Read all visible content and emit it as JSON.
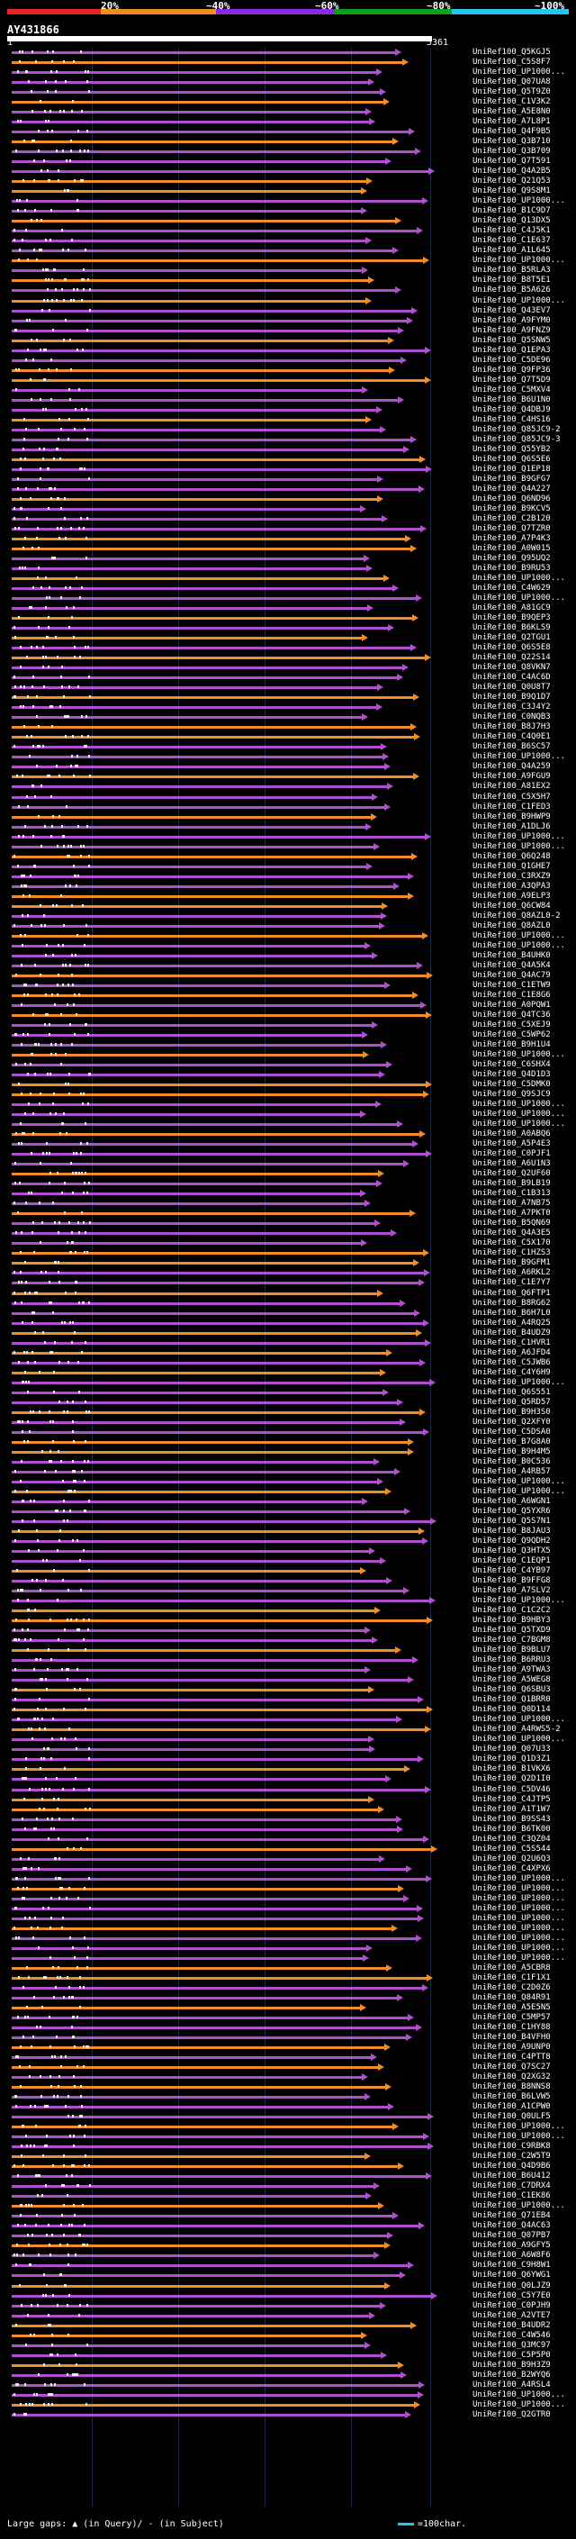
{
  "legend": {
    "labels": [
      "20%",
      "~40%",
      "~60%",
      "~80%",
      "~100%"
    ],
    "colors": [
      "#e62424",
      "#f28c28",
      "#8a2be2",
      "#0c9f1c",
      "#24c5f1"
    ]
  },
  "query": {
    "id": "AY431866",
    "start": "1",
    "end": "5361"
  },
  "footer": {
    "gaps": "Large gaps: ▲ (in Query)/ - (in Subject)",
    "scale": "=100char."
  },
  "hits": [
    "UniRef100_Q5KGJ5",
    "UniRef100_C5S8F7",
    "UniRef100_UP1000...",
    "UniRef100_Q07UA8",
    "UniRef100_Q5T9Z0",
    "UniRef100_C1V3K2",
    "UniRef100_A5E8N0",
    "UniRef100_A7L8P1",
    "UniRef100_Q4F9B5",
    "UniRef100_Q3B710",
    "UniRef100_Q3B709",
    "UniRef100_Q7T591",
    "UniRef100_Q4A2B5",
    "UniRef100_Q21Q53",
    "UniRef100_Q9S8M1",
    "UniRef100_UP1000...",
    "UniRef100_B1C9D7",
    "UniRef100_Q13DX5",
    "UniRef100_C4J5K1",
    "UniRef100_C1E637",
    "UniRef100_A1L645",
    "UniRef100_UP1000...",
    "UniRef100_B5RLA3",
    "UniRef100_B8T5E1",
    "UniRef100_B5A626",
    "UniRef100_UP1000...",
    "UniRef100_Q43EV7",
    "UniRef100_A9FYM0",
    "UniRef100_A9FNZ9",
    "UniRef100_Q5SNW5",
    "UniRef100_Q1EPA3",
    "UniRef100_C5DE96",
    "UniRef100_Q9FP36",
    "UniRef100_Q7T5D9",
    "UniRef100_C5MXV4",
    "UniRef100_B6U1N0",
    "UniRef100_Q4DBJ9",
    "UniRef100_C4HS16",
    "UniRef100_Q85JC9-2",
    "UniRef100_Q85JC9-3",
    "UniRef100_Q55YB2",
    "UniRef100_Q6S5E6",
    "UniRef100_Q1EP18",
    "UniRef100_B9GFG7",
    "UniRef100_Q4A227",
    "UniRef100_Q6ND96",
    "UniRef100_B9KCV5",
    "UniRef100_C2B120",
    "UniRef100_Q7TZR0",
    "UniRef100_A7P4K3",
    "UniRef100_A0W015",
    "UniRef100_Q95UQ2",
    "UniRef100_B9RU53",
    "UniRef100_UP1000...",
    "UniRef100_C4W629",
    "UniRef100_UP1000...",
    "UniRef100_A81GC9",
    "UniRef100_B9QEP3",
    "UniRef100_B6KLS9",
    "UniRef100_Q2TGU1",
    "UniRef100_Q6S5E8",
    "UniRef100_Q22S14",
    "UniRef100_Q8VKN7",
    "UniRef100_C4AC6D",
    "UniRef100_Q0U8T7",
    "UniRef100_B9Q1D7",
    "UniRef100_C3J4Y2",
    "UniRef100_C0NQB3",
    "UniRef100_B8J7H3",
    "UniRef100_C4Q0E1",
    "UniRef100_B6SC57",
    "UniRef100_UP1000...",
    "UniRef100_Q4A259",
    "UniRef100_A9FGU9",
    "UniRef100_A81EX2",
    "UniRef100_C5X5H7",
    "UniRef100_C1FED3",
    "UniRef100_B9HWP9",
    "UniRef100_A1DLJ6",
    "UniRef100_UP1000...",
    "UniRef100_UP1000...",
    "UniRef100_Q6Q248",
    "UniRef100_Q1GHE7",
    "UniRef100_C3RXZ9",
    "UniRef100_A3QPA3",
    "UniRef100_A9ELP3",
    "UniRef100_Q6CW84",
    "UniRef100_Q8AZL0-2",
    "UniRef100_Q8AZL0",
    "UniRef100_UP1000...",
    "UniRef100_UP1000...",
    "UniRef100_B4UHK0",
    "UniRef100_Q4A5K4",
    "UniRef100_Q4AC79",
    "UniRef100_C1ETW9",
    "UniRef100_C1E8G6",
    "UniRef100_A0PQW1",
    "UniRef100_Q4TC36",
    "UniRef100_C5XEJ9",
    "UniRef100_C5WP62",
    "UniRef100_B9H1U4",
    "UniRef100_UP1000...",
    "UniRef100_C6SHX4",
    "UniRef100_Q4D1D3",
    "UniRef100_C5DMK0",
    "UniRef100_Q9SJC9",
    "UniRef100_UP1000...",
    "UniRef100_UP1000...",
    "UniRef100_UP1000...",
    "UniRef100_A0ABQ6",
    "UniRef100_A5P4E3",
    "UniRef100_C0PJF1",
    "UniRef100_A6U1N3",
    "UniRef100_Q2UF60",
    "UniRef100_B9LB19",
    "UniRef100_C1B313",
    "UniRef100_A7NB75",
    "UniRef100_A7PKT0",
    "UniRef100_B5QN69",
    "UniRef100_Q4A3E5",
    "UniRef100_C5X170",
    "UniRef100_C1HZS3",
    "UniRef100_B9GFM1",
    "UniRef100_A6RKL2",
    "UniRef100_C1E7Y7",
    "UniRef100_Q6FTP1",
    "UniRef100_B8RG62",
    "UniRef100_B6H7L0",
    "UniRef100_A4RQ25",
    "UniRef100_B4UDZ9",
    "UniRef100_C1HVR1",
    "UniRef100_A6JFD4",
    "UniRef100_C5JWB6",
    "UniRef100_C4Y6H9",
    "UniRef100_UP1000...",
    "UniRef100_Q6S551",
    "UniRef100_Q5RD57",
    "UniRef100_B9H3S0",
    "UniRef100_Q2XFY0",
    "UniRef100_C5DSA0",
    "UniRef100_B7G8A0",
    "UniRef100_B9H4M5",
    "UniRef100_B0C536",
    "UniRef100_A4RB57",
    "UniRef100_UP1000...",
    "UniRef100_UP1000...",
    "UniRef100_A6WGN1",
    "UniRef100_Q5YXR6",
    "UniRef100_Q5S7N1",
    "UniRef100_B8JAU3",
    "UniRef100_Q9QDH2",
    "UniRef100_Q3HTX5",
    "UniRef100_C1EQP1",
    "UniRef100_C4YB97",
    "UniRef100_B9FFG8",
    "UniRef100_A7SLV2",
    "UniRef100_UP1000...",
    "UniRef100_C1C2C2",
    "UniRef100_B9HBY3",
    "UniRef100_Q5TXD9",
    "UniRef100_C7BGM8",
    "UniRef100_B9BLU7",
    "UniRef100_B6RRU3",
    "UniRef100_A9TWA3",
    "UniRef100_A5WEG8",
    "UniRef100_Q6SBU3",
    "UniRef100_Q1BRR0",
    "UniRef100_Q0D114",
    "UniRef100_UP1000...",
    "UniRef100_A4RWS5-2",
    "UniRef100_UP1000...",
    "UniRef100_Q07U33",
    "UniRef100_Q1D3Z1",
    "UniRef100_B1VKX6",
    "UniRef100_Q2D1I0",
    "UniRef100_C5DV46",
    "UniRef100_C4JTP5",
    "UniRef100_A1T1W7",
    "UniRef100_B9SS43",
    "UniRef100_B6TK00",
    "UniRef100_C3QZ04",
    "UniRef100_C5S544",
    "UniRef100_Q2U6Q3",
    "UniRef100_C4XPX6",
    "UniRef100_UP1000...",
    "UniRef100_UP1000...",
    "UniRef100_UP1000...",
    "UniRef100_UP1000...",
    "UniRef100_UP1000...",
    "UniRef100_UP1000...",
    "UniRef100_UP1000...",
    "UniRef100_UP1000...",
    "UniRef100_UP1000...",
    "UniRef100_A5CBR8",
    "UniRef100_C1F1X1",
    "UniRef100_C2D0Z6",
    "UniRef100_Q84R91",
    "UniRef100_A5E5N5",
    "UniRef100_C5MP57",
    "UniRef100_C1HY88",
    "UniRef100_B4VFH0",
    "UniRef100_A9UNP0",
    "UniRef100_C4PTT8",
    "UniRef100_Q7SC27",
    "UniRef100_Q2XG32",
    "UniRef100_B8NNS8",
    "UniRef100_B6LVW5",
    "UniRef100_A1CPW0",
    "UniRef100_Q0ULF5",
    "UniRef100_UP1000...",
    "UniRef100_UP1000...",
    "UniRef100_C9RBK8",
    "UniRef100_C2W5T9",
    "UniRef100_Q4D9B6",
    "UniRef100_B6U412",
    "UniRef100_C7DRX4",
    "UniRef100_C1EK86",
    "UniRef100_UP1000...",
    "UniRef100_Q71EB4",
    "UniRef100_Q4AC63",
    "UniRef100_Q07PB7",
    "UniRef100_A9GFY5",
    "UniRef100_A6W8F6",
    "UniRef100_C9H8W1",
    "UniRef100_Q6YWG1",
    "UniRef100_Q0LJZ9",
    "UniRef100_C5Y7E0",
    "UniRef100_C0PJH9",
    "UniRef100_A2VTE7",
    "UniRef100_B4UDR2",
    "UniRef100_C4W546",
    "UniRef100_Q3MC97",
    "UniRef100_C5P5P0",
    "UniRef100_B9H3Z9",
    "UniRef100_B2WYQ6",
    "UniRef100_A4RSL4",
    "UniRef100_UP1000...",
    "UniRef100_UP1000...",
    "UniRef100_Q2GTR0"
  ]
}
